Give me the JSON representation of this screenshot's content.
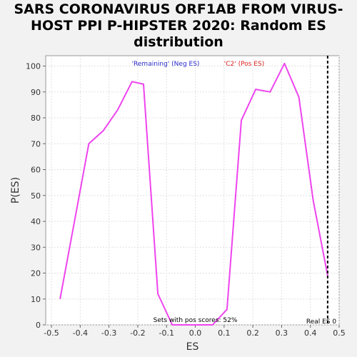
{
  "chart_data": {
    "type": "line",
    "title_line1": "SARS CORONAVIRUS ORF1AB FROM VIRUS-",
    "title_line2": "HOST PPI P-HIPSTER 2020: Random ES",
    "title_line3": "distribution",
    "xlabel": "ES",
    "ylabel": "P(ES)",
    "xlim": [
      -0.52,
      0.5
    ],
    "ylim": [
      0,
      104
    ],
    "xticks": [
      -0.5,
      -0.4,
      -0.3,
      -0.2,
      -0.1,
      0.0,
      0.1,
      0.2,
      0.3,
      0.4,
      0.5
    ],
    "xtick_labels": [
      "-0.5",
      "-0.4",
      "-0.3",
      "-0.2",
      "-0.1",
      "0.0",
      "0.1",
      "0.2",
      "0.3",
      "0.4",
      "0.5"
    ],
    "yticks": [
      0,
      10,
      20,
      30,
      40,
      50,
      60,
      70,
      80,
      90,
      100
    ],
    "ytick_labels": [
      "0",
      "10",
      "20",
      "30",
      "40",
      "50",
      "60",
      "70",
      "80",
      "90",
      "100"
    ],
    "grid": true,
    "legend": {
      "neg_label": "'Remaining' (Neg ES)",
      "pos_label": "'C2' (Pos ES)",
      "neg_color": "#2a2acc",
      "pos_color": "#dd2222",
      "placement": "top-center"
    },
    "series": [
      {
        "color": "#ee44ee",
        "x": [
          -0.47,
          -0.42,
          -0.37,
          -0.32,
          -0.27,
          -0.22,
          -0.18,
          -0.13,
          -0.08,
          -0.03,
          0.02,
          0.06,
          0.11,
          0.16,
          0.21,
          0.26,
          0.31,
          0.36,
          0.41,
          0.46
        ],
        "y": [
          10,
          40,
          70,
          75,
          83,
          94,
          93,
          12,
          0,
          0,
          0,
          0,
          6,
          79,
          91,
          90,
          101,
          88,
          48,
          19
        ]
      }
    ],
    "real_es": 0.46,
    "real_es_label": "Real ES 0",
    "annotation": "Sets with pos scores: 52%"
  }
}
